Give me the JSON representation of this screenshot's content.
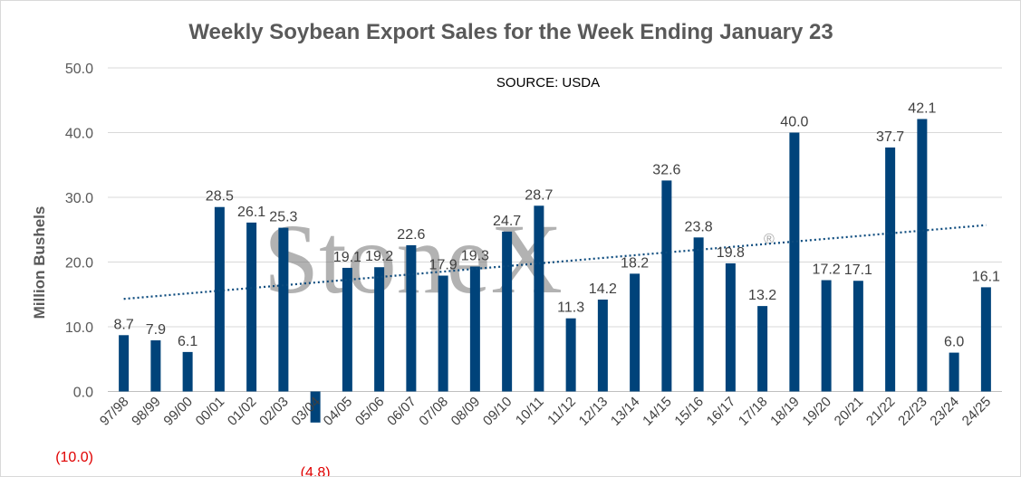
{
  "chart_data": {
    "type": "bar",
    "title": "Weekly Soybean Export Sales for the Week Ending January 23",
    "source_note": "SOURCE: USDA",
    "ylabel": "Million Bushels",
    "xlabel": "",
    "ylim": [
      -10,
      50
    ],
    "yticks": [
      -10,
      0,
      10,
      20,
      30,
      40,
      50
    ],
    "ytick_labels": [
      "(10.0)",
      "0.0",
      "10.0",
      "20.0",
      "30.0",
      "40.0",
      "50.0"
    ],
    "grid": true,
    "legend": "none",
    "categories": [
      "97/98",
      "98/99",
      "99/00",
      "00/01",
      "01/02",
      "02/03",
      "03/04",
      "04/05",
      "05/06",
      "06/07",
      "07/08",
      "08/09",
      "09/10",
      "10/11",
      "11/12",
      "12/13",
      "13/14",
      "14/15",
      "15/16",
      "16/17",
      "17/18",
      "18/19",
      "19/20",
      "20/21",
      "21/22",
      "22/23",
      "23/24",
      "24/25"
    ],
    "values": [
      8.7,
      7.9,
      6.1,
      28.5,
      26.1,
      25.3,
      -4.8,
      19.1,
      19.2,
      22.6,
      17.9,
      19.3,
      24.7,
      28.7,
      11.3,
      14.2,
      18.2,
      32.6,
      23.8,
      19.8,
      13.2,
      40.0,
      17.2,
      17.1,
      37.7,
      42.1,
      6.0,
      16.1
    ],
    "value_labels": [
      "8.7",
      "7.9",
      "6.1",
      "28.5",
      "26.1",
      "25.3",
      "(4.8)",
      "19.1",
      "19.2",
      "22.6",
      "17.9",
      "19.3",
      "24.7",
      "28.7",
      "11.3",
      "14.2",
      "18.2",
      "32.6",
      "23.8",
      "19.8",
      "13.2",
      "40.0",
      "17.2",
      "17.1",
      "37.7",
      "42.1",
      "6.0",
      "16.1"
    ],
    "trendline": {
      "style": "dotted",
      "start": 14.3,
      "end": 25.7
    },
    "watermark": "StoneX",
    "watermark_mark": "®",
    "colors": {
      "bar": "#00437a",
      "trend": "#0b4a7d",
      "grid": "#d9d9d9",
      "negative_label": "#e00000",
      "text": "#595959"
    }
  }
}
